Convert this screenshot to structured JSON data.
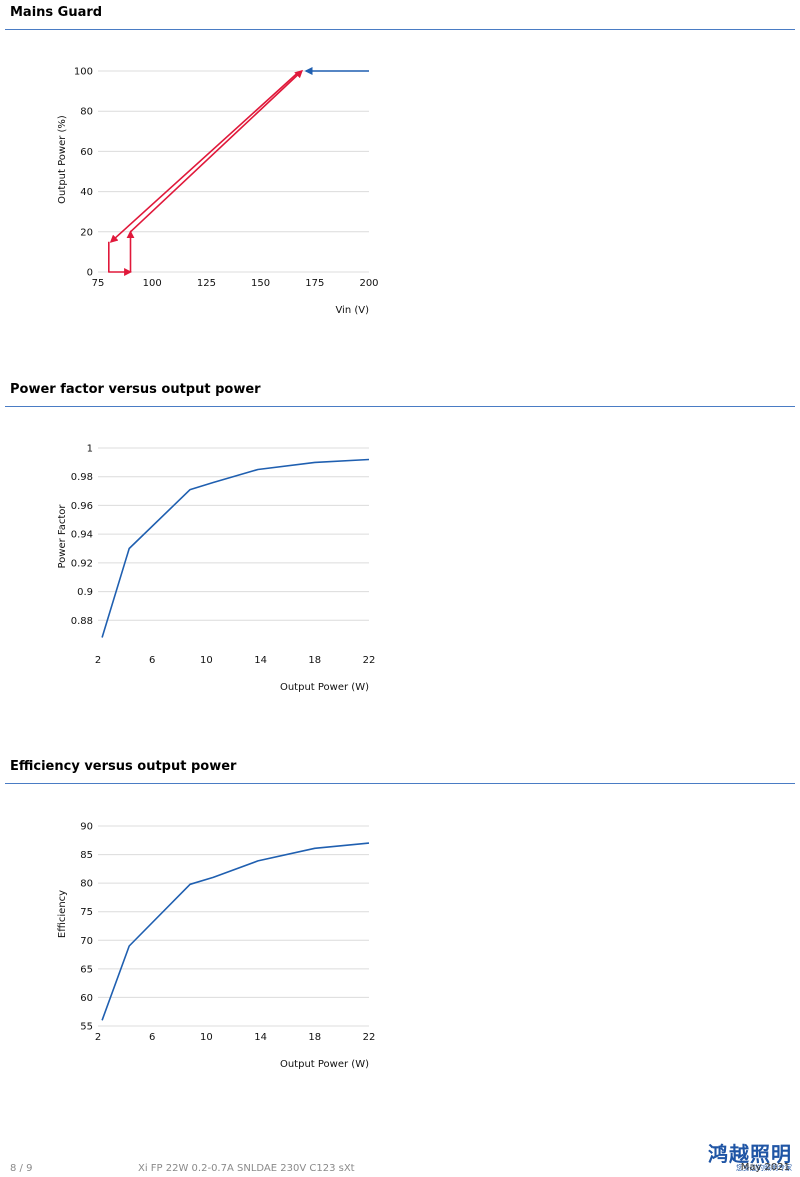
{
  "sections": [
    {
      "title": "Mains Guard"
    },
    {
      "title": "Power factor versus output power"
    },
    {
      "title": "Efficiency versus output power"
    }
  ],
  "chart_data": [
    {
      "type": "line",
      "xlabel": "Vin (V)",
      "ylabel": "Output Power (%)",
      "xlim": [
        75,
        200
      ],
      "ylim": [
        0,
        100
      ],
      "xticks": [
        75,
        100,
        125,
        150,
        175,
        200
      ],
      "yticks": [
        0,
        20,
        40,
        60,
        80,
        100
      ],
      "grid": true,
      "series": [
        {
          "color": "#1f5fb0",
          "arrow": "end",
          "x": [
            200,
            171
          ],
          "y": [
            100,
            100
          ]
        },
        {
          "color": "#e0183a",
          "arrow": "end",
          "x": [
            167,
            81
          ],
          "y": [
            99,
            15
          ]
        },
        {
          "color": "#e0183a",
          "arrow": "end",
          "x": [
            80,
            80,
            90
          ],
          "y": [
            15,
            0,
            0
          ]
        },
        {
          "color": "#e0183a",
          "arrow": "end",
          "x": [
            90,
            90
          ],
          "y": [
            0,
            20
          ]
        },
        {
          "color": "#e0183a",
          "arrow": "end",
          "x": [
            90,
            169
          ],
          "y": [
            20,
            100
          ]
        }
      ]
    },
    {
      "type": "line",
      "xlabel": "Output Power (W)",
      "ylabel": "Power Factor",
      "xlim": [
        2,
        22
      ],
      "ylim": [
        0.86,
        1
      ],
      "xticks": [
        2,
        6,
        10,
        14,
        18,
        22
      ],
      "yticks": [
        0.88,
        0.9,
        0.92,
        0.94,
        0.96,
        0.98,
        1
      ],
      "ytick_labels": [
        "0.88",
        "0.9",
        "0.92",
        "0.94",
        "0.96",
        "0.98",
        "1"
      ],
      "grid": true,
      "series": [
        {
          "color": "#1f5fb0",
          "x": [
            2.3,
            4.3,
            8.8,
            10.5,
            13.8,
            18,
            22
          ],
          "y": [
            0.868,
            0.93,
            0.971,
            0.976,
            0.985,
            0.99,
            0.992
          ]
        }
      ]
    },
    {
      "type": "line",
      "xlabel": "Output Power (W)",
      "ylabel": "Efficiency",
      "xlim": [
        2,
        22
      ],
      "ylim": [
        55,
        90
      ],
      "xticks": [
        2,
        6,
        10,
        14,
        18,
        22
      ],
      "yticks": [
        55,
        60,
        65,
        70,
        75,
        80,
        85,
        90
      ],
      "grid": true,
      "series": [
        {
          "color": "#1f5fb0",
          "x": [
            2.3,
            4.3,
            8.8,
            10.5,
            13.8,
            18,
            22
          ],
          "y": [
            56,
            69,
            79.8,
            81,
            83.9,
            86.1,
            87
          ]
        }
      ]
    }
  ],
  "footer": {
    "page": "8 / 9",
    "product": "Xi FP 22W 0.2-0.7A SNLDAE 230V C123 sXt",
    "date": "May 2021",
    "logo_text": "鸿越照明",
    "logo_subtext": "您身边的照明专家",
    "accent_color": "#1f55a5"
  }
}
